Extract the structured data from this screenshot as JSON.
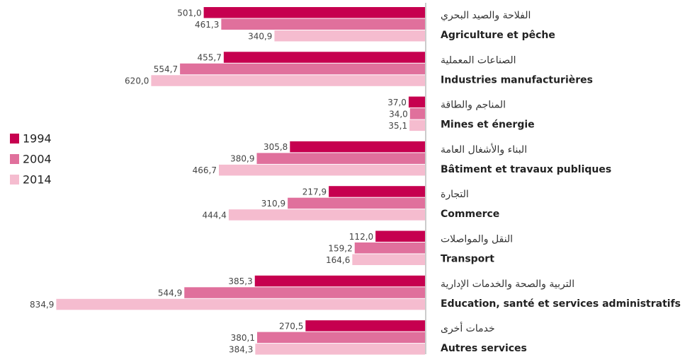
{
  "chart_data": {
    "type": "hbar",
    "categories": [
      "Agriculture et pêche",
      "Industries manufacturières",
      "Mines et énergie",
      "Bâtiment et travaux publiques",
      "Commerce",
      "Transport",
      "Education, santé et services administratifs",
      "Autres services"
    ],
    "categories_ar": [
      "الفلاحة والصيد البحري",
      "الصناعات المعملية",
      "المناجم والطاقة",
      "البناء والأشغال العامة",
      "التجارة",
      "النقل والمواصلات",
      "التربية والصحة والخدمات الإدارية",
      "خدمات أخرى"
    ],
    "series": [
      {
        "name": "1994",
        "color": "#c6004f",
        "values": [
          501.0,
          455.7,
          37.0,
          305.8,
          217.9,
          112.0,
          385.3,
          270.5
        ],
        "value_labels": [
          "501,0",
          "455,7",
          "37,0",
          "305,8",
          "217,9",
          "112,0",
          "385,3",
          "270,5"
        ]
      },
      {
        "name": "2004",
        "color": "#e0709c",
        "values": [
          461.3,
          554.7,
          34.0,
          380.9,
          310.9,
          159.2,
          544.9,
          380.1
        ],
        "value_labels": [
          "461,3",
          "554,7",
          "34,0",
          "380,9",
          "310,9",
          "159,2",
          "544,9",
          "380,1"
        ]
      },
      {
        "name": "2014",
        "color": "#f5bccf",
        "values": [
          340.9,
          620.0,
          35.1,
          466.7,
          444.4,
          164.6,
          834.9,
          384.3
        ],
        "value_labels": [
          "340,9",
          "620,0",
          "35,1",
          "466,7",
          "444,4",
          "164,6",
          "834,9",
          "384,3"
        ]
      }
    ],
    "xlim": [
      0,
      850
    ],
    "legend": "left"
  }
}
